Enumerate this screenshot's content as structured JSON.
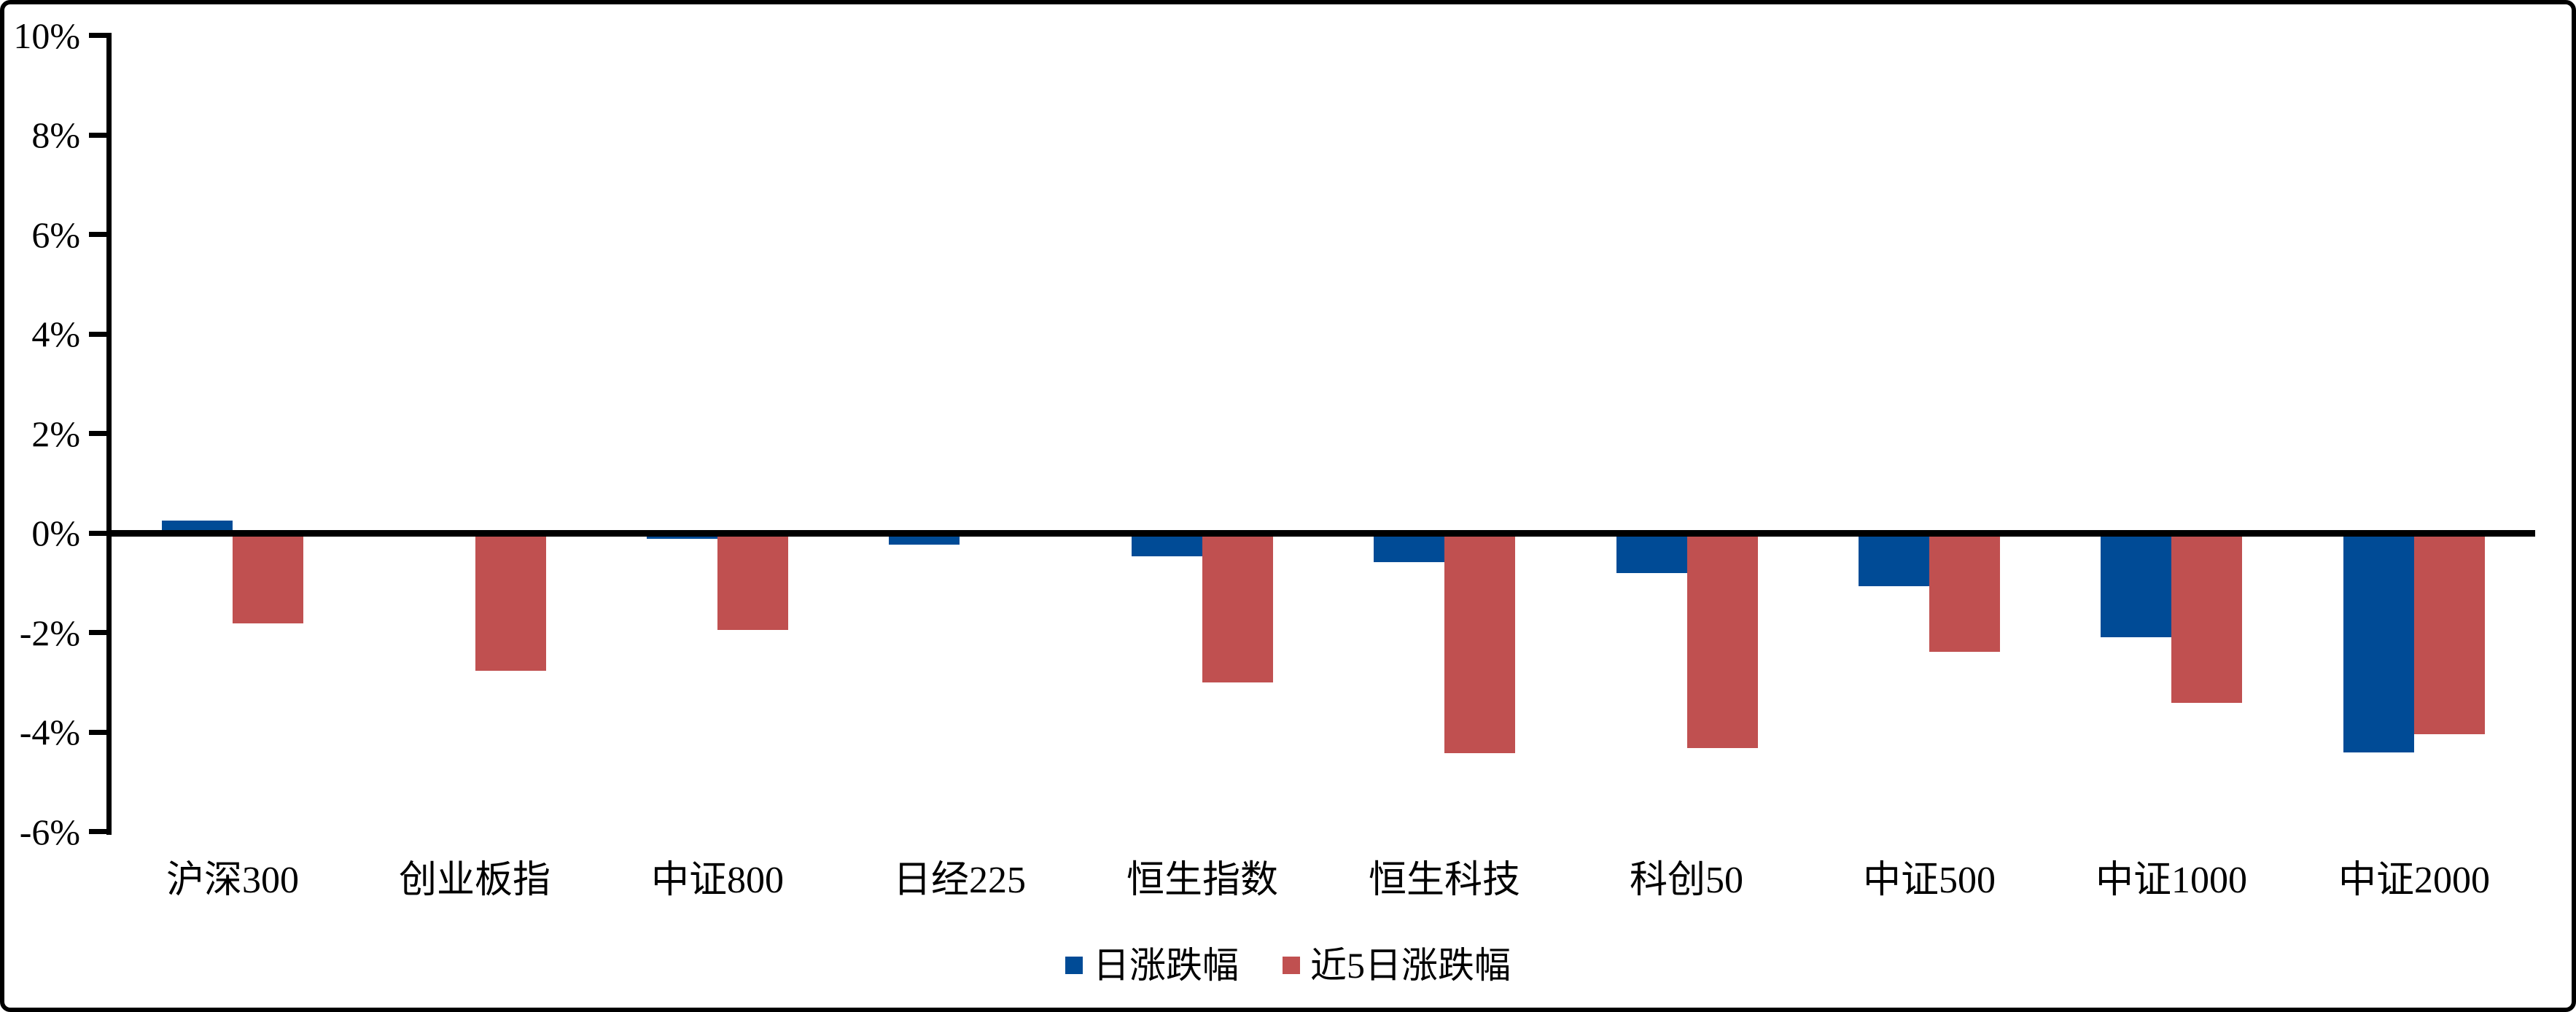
{
  "frame": {
    "background": "#FFFFFF",
    "border_color": "#000000"
  },
  "chart_data": {
    "type": "bar",
    "title": "",
    "xlabel": "",
    "ylabel": "",
    "categories": [
      "沪深300",
      "创业板指",
      "中证800",
      "日经225",
      "恒生指数",
      "恒生科技",
      "科创50",
      "中证500",
      "中证1000",
      "中证2000"
    ],
    "series": [
      {
        "name": "日涨跌幅",
        "color": "#004B96",
        "values": [
          0.25,
          0,
          -0.11,
          -0.24,
          -0.47,
          -0.58,
          -0.81,
          -1.07,
          -2.09,
          -4.41
        ]
      },
      {
        "name": "近5日涨跌幅",
        "color": "#C05050",
        "values": [
          -1.81,
          -2.77,
          -1.95,
          0,
          -3.01,
          -4.42,
          -4.32,
          -2.39,
          -3.42,
          -4.04
        ]
      }
    ],
    "ylim": [
      -6,
      10
    ],
    "ytick_step": 2,
    "ytick_labels": [
      "10%",
      "8%",
      "6%",
      "4%",
      "2%",
      "0%",
      "-2%",
      "-4%",
      "-6%"
    ],
    "grid": false,
    "legend_position": "bottom",
    "axis_color": "#000000",
    "text_color": "#000000"
  }
}
